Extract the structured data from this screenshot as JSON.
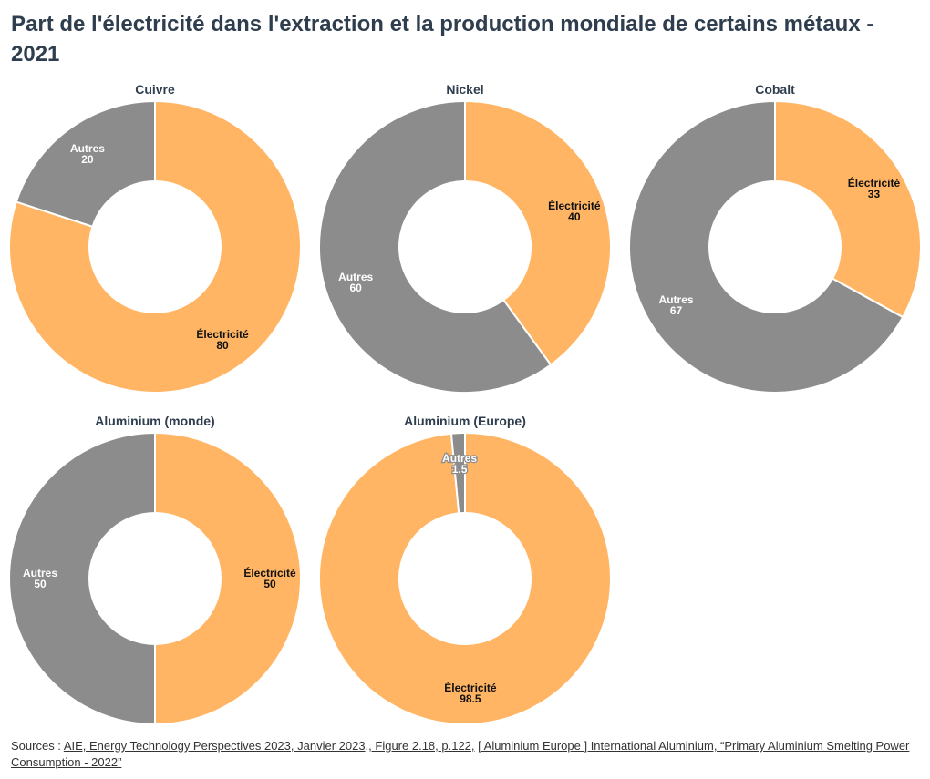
{
  "title": "Part de l'électricité dans l'extraction et la production mondiale de certains métaux - 2021",
  "sources": {
    "prefix": "Sources : ",
    "link1": "AIE, Energy Technology Perspectives 2023, Janvier 2023,, Figure 2.18, p.122,",
    "separator": " ",
    "link2": "[ Aluminium Europe ] International Aluminium, “Primary Aluminium Smelting Power Consumption - 2022”"
  },
  "colors": {
    "electricite": "#ffb563",
    "autres": "#8c8c8c",
    "title_text": "#2f3e4e"
  },
  "chart_data": [
    {
      "type": "pie",
      "title": "Cuivre",
      "slices": [
        {
          "label": "Électricité",
          "value": 80
        },
        {
          "label": "Autres",
          "value": 20
        }
      ]
    },
    {
      "type": "pie",
      "title": "Nickel",
      "slices": [
        {
          "label": "Électricité",
          "value": 40
        },
        {
          "label": "Autres",
          "value": 60
        }
      ]
    },
    {
      "type": "pie",
      "title": "Cobalt",
      "slices": [
        {
          "label": "Électricité",
          "value": 33
        },
        {
          "label": "Autres",
          "value": 67
        }
      ]
    },
    {
      "type": "pie",
      "title": "Aluminium (monde)",
      "slices": [
        {
          "label": "Électricité",
          "value": 50
        },
        {
          "label": "Autres",
          "value": 50
        }
      ]
    },
    {
      "type": "pie",
      "title": "Aluminium (Europe)",
      "slices": [
        {
          "label": "Électricité",
          "value": 98.5
        },
        {
          "label": "Autres",
          "value": 1.5
        }
      ]
    }
  ]
}
